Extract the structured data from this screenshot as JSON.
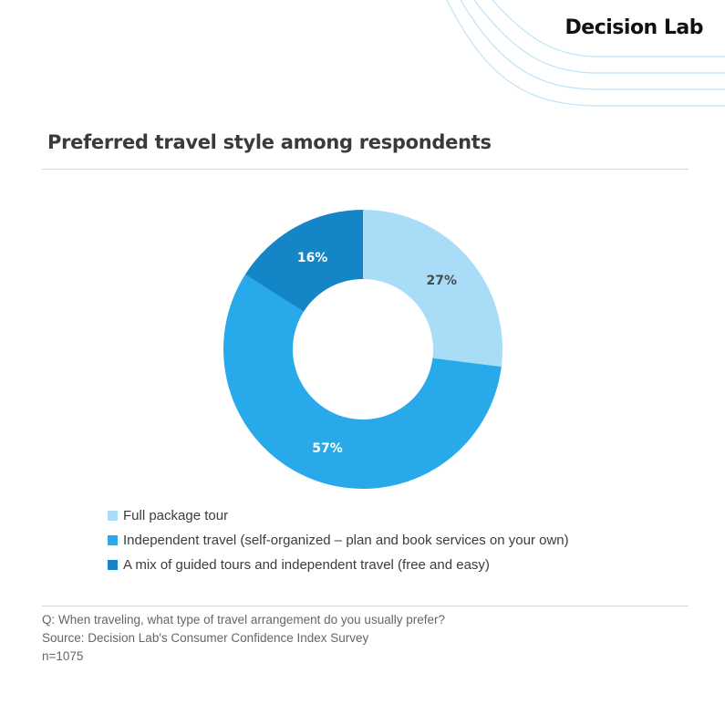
{
  "brand": "Decision Lab",
  "title": "Preferred travel style among respondents",
  "chart_data": {
    "type": "pie",
    "categories": [
      "Full package tour",
      "Independent travel (self-organized – plan and book services on your own)",
      "A mix of guided tours and independent travel (free and easy)"
    ],
    "values": [
      27,
      57,
      16
    ],
    "labels": [
      "27%",
      "57%",
      "16%"
    ],
    "colors": [
      "#a9dcf7",
      "#28a9ea",
      "#1486c8"
    ],
    "donut": true,
    "legend_position": "bottom"
  },
  "footer": {
    "question": "Q: When traveling, what type of travel arrangement do you usually prefer?",
    "source": "Source: Decision Lab's Consumer Confidence Index Survey",
    "n": "n=1075"
  },
  "colors": {
    "deco_line": "#bfe3f7",
    "label_dark": "#4a4a4a",
    "label_light": "#ffffff"
  }
}
